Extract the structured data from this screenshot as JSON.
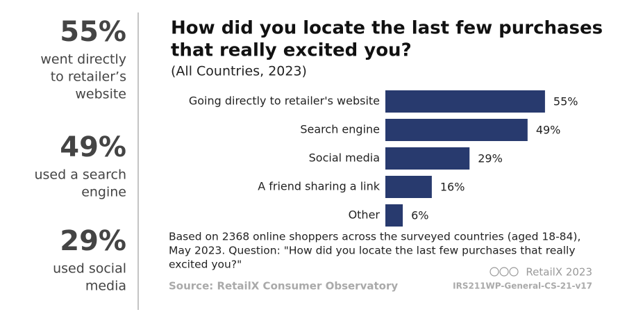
{
  "sidebar": [
    {
      "stat": "55%",
      "lines": [
        "went directly",
        "to retailer’s",
        "website"
      ]
    },
    {
      "stat": "49%",
      "lines": [
        "used a search",
        "engine"
      ]
    },
    {
      "stat": "29%",
      "lines": [
        "used social",
        "media"
      ]
    }
  ],
  "chart_data": {
    "type": "bar",
    "orientation": "horizontal",
    "title": [
      "How did you locate the last few purchases",
      "that really excited you?"
    ],
    "subtitle": "(All Countries, 2023)",
    "categories": [
      "Going directly to retailer's website",
      "Search engine",
      "Social media",
      "A friend sharing a link",
      "Other"
    ],
    "values": [
      55,
      49,
      29,
      16,
      6
    ],
    "value_labels": [
      "55%",
      "49%",
      "29%",
      "16%",
      "6%"
    ],
    "color": "#283a6e"
  },
  "footnote": [
    "Based on 2368 online shoppers across the surveyed countries (aged 18-84),",
    "May 2023. Question: \"How did you locate the last few purchases that really",
    "excited you?\""
  ],
  "credit": "RetailX 2023",
  "source": "Source: RetailX Consumer Observatory",
  "code": "IRS211WP-General-CS-21-v17"
}
